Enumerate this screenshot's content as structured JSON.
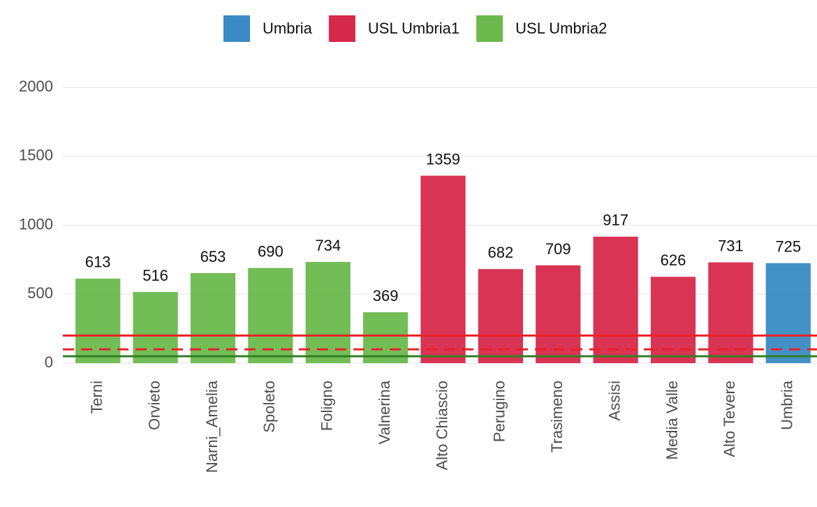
{
  "chart_data": {
    "type": "bar",
    "categories": [
      "Terni",
      "Orvieto",
      "Narni_Amelia",
      "Spoleto",
      "Foligno",
      "Valnerina",
      "Alto Chiascio",
      "Perugino",
      "Trasimeno",
      "Assisi",
      "Media Valle",
      "Alto Tevere",
      "Umbria"
    ],
    "series": [
      {
        "name": "Umbria",
        "color": "#3a8bc4",
        "values": [
          null,
          null,
          null,
          null,
          null,
          null,
          null,
          null,
          null,
          null,
          null,
          null,
          725
        ]
      },
      {
        "name": "USL Umbria1",
        "color": "#d7294b",
        "values": [
          null,
          null,
          null,
          null,
          null,
          null,
          1359,
          682,
          709,
          917,
          626,
          731,
          null
        ]
      },
      {
        "name": "USL Umbria2",
        "color": "#6bb94d",
        "values": [
          613,
          516,
          653,
          690,
          734,
          369,
          null,
          null,
          null,
          null,
          null,
          null,
          null
        ]
      }
    ],
    "reference_lines": [
      {
        "value": 200,
        "color": "#ec2227",
        "dash": false
      },
      {
        "value": 100,
        "color": "#ec2227",
        "dash": true
      },
      {
        "value": 50,
        "color": "#2f7f24",
        "dash": false
      }
    ],
    "ylim": [
      0,
      2000
    ],
    "yticks": [
      0,
      500,
      1000,
      1500,
      2000
    ],
    "grid": true
  }
}
